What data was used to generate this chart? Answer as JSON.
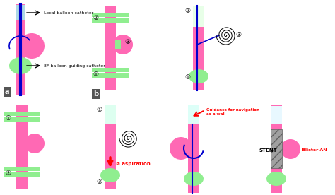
{
  "bg_color": "#ffffff",
  "pink": "#FF69B4",
  "green": "#90EE90",
  "light_blue": "#ADD8E6",
  "blue": "#0000CD",
  "red": "#FF0000",
  "black": "#000000",
  "dark_gray": "#606060",
  "gray": "#A0A0A0",
  "label_a": "a",
  "label_b": "b",
  "text1": "Local balloon catheter",
  "text2": "8F balloon guiding catheter",
  "text3": "aspiration",
  "text4": "Guidance for navigation\nas a wall",
  "text5": "STENT",
  "text6": "Blister AN",
  "circ1": "①",
  "circ2": "②",
  "circ3": "③"
}
